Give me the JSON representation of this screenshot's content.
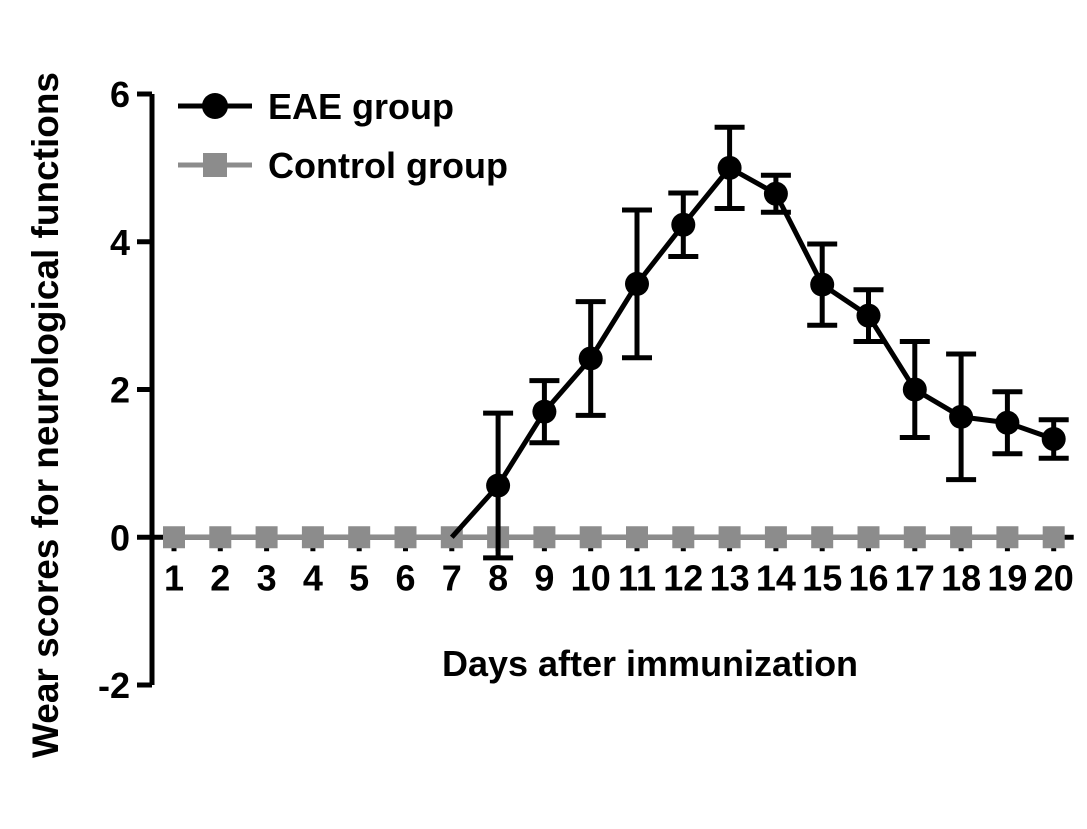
{
  "chart_data": {
    "type": "line",
    "xlabel": "Days after immunization",
    "ylabel": "Wear scores for neurological functions",
    "x": [
      1,
      2,
      3,
      4,
      5,
      6,
      7,
      8,
      9,
      10,
      11,
      12,
      13,
      14,
      15,
      16,
      17,
      18,
      19,
      20
    ],
    "x_tick_labels": [
      "1",
      "2",
      "3",
      "4",
      "5",
      "6",
      "7",
      "8",
      "9",
      "10",
      "11",
      "12",
      "13",
      "14",
      "15",
      "16",
      "17",
      "18",
      "19",
      "20"
    ],
    "ylim": [
      -2,
      6
    ],
    "y_ticks": [
      -2,
      0,
      2,
      4,
      6
    ],
    "y_tick_labels": [
      "-2",
      "0",
      "2",
      "4",
      "6"
    ],
    "grid": false,
    "legend_position": "top-left",
    "series": [
      {
        "name": "EAE group",
        "color": "#000000",
        "marker": "circle",
        "values": [
          0,
          0,
          0,
          0,
          0,
          0,
          0,
          0.7,
          1.7,
          2.42,
          3.43,
          4.23,
          5.0,
          4.65,
          3.42,
          3.0,
          2.0,
          1.63,
          1.55,
          1.33
        ],
        "error": [
          0,
          0,
          0,
          0,
          0,
          0,
          0,
          0.98,
          0.42,
          0.77,
          1.0,
          0.43,
          0.55,
          0.25,
          0.55,
          0.35,
          0.65,
          0.85,
          0.42,
          0.26
        ]
      },
      {
        "name": "Control group",
        "color": "#8c8c8c",
        "marker": "square",
        "values": [
          0,
          0,
          0,
          0,
          0,
          0,
          0,
          0,
          0,
          0,
          0,
          0,
          0,
          0,
          0,
          0,
          0,
          0,
          0,
          0
        ]
      }
    ]
  }
}
